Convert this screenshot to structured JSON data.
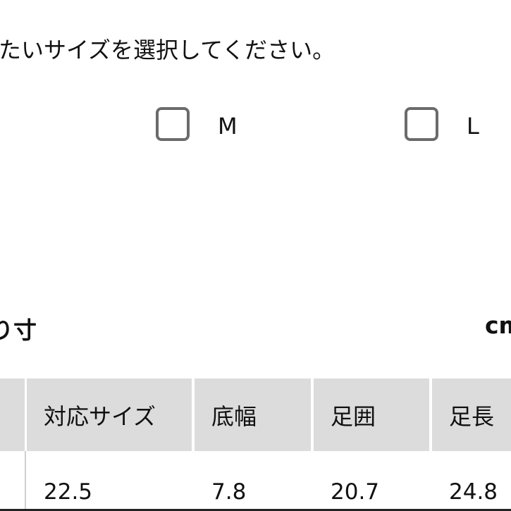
{
  "instruction": "たいサイズを選択してください。",
  "size_options": [
    {
      "label": "M",
      "checked": false
    },
    {
      "label": "L",
      "checked": false
    }
  ],
  "section": {
    "title": "り寸",
    "unit": "cm"
  },
  "table": {
    "headers": [
      "",
      "対応サイズ",
      "底幅",
      "足囲",
      "足長"
    ],
    "rows": [
      [
        "",
        "22.5",
        "7.8",
        "20.7",
        "24.8"
      ]
    ]
  }
}
